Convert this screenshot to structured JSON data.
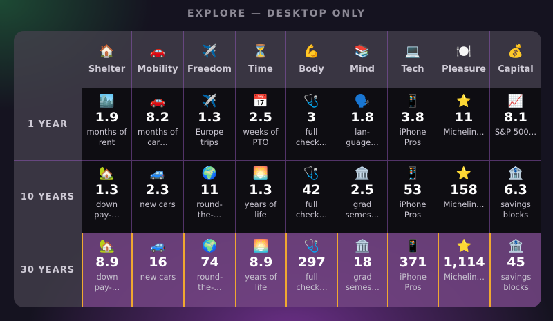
{
  "header": {
    "title": "EXPLORE — DESKTOP ONLY"
  },
  "table": {
    "columns": [
      {
        "icon": "🏠",
        "label": "Shelter"
      },
      {
        "icon": "🚗",
        "label": "Mobility"
      },
      {
        "icon": "✈️",
        "label": "Freedom"
      },
      {
        "icon": "⏳",
        "label": "Time"
      },
      {
        "icon": "💪",
        "label": "Body"
      },
      {
        "icon": "📚",
        "label": "Mind"
      },
      {
        "icon": "💻",
        "label": "Tech"
      },
      {
        "icon": "🍽️",
        "label": "Pleasure"
      },
      {
        "icon": "💰",
        "label": "Capital"
      }
    ],
    "rows": [
      {
        "label": "1 YEAR",
        "cells": [
          {
            "icon": "🏙️",
            "value": "1.9",
            "text": "months of rent"
          },
          {
            "icon": "🚗",
            "value": "8.2",
            "text": "months of car…"
          },
          {
            "icon": "✈️",
            "value": "1.3",
            "text": "Europe trips"
          },
          {
            "icon": "📅",
            "value": "2.5",
            "text": "weeks of PTO"
          },
          {
            "icon": "🩺",
            "value": "3",
            "text": "full check…"
          },
          {
            "icon": "🗣️",
            "value": "1.8",
            "text": "lan­guage…"
          },
          {
            "icon": "📱",
            "value": "3.8",
            "text": "iPhone Pros"
          },
          {
            "icon": "⭐",
            "value": "11",
            "text": "Michelin…"
          },
          {
            "icon": "📈",
            "value": "8.1",
            "text": "S&P 500…"
          }
        ]
      },
      {
        "label": "10 YEARS",
        "cells": [
          {
            "icon": "🏡",
            "value": "1.3",
            "text": "down pay-…"
          },
          {
            "icon": "🚙",
            "value": "2.3",
            "text": "new cars"
          },
          {
            "icon": "🌍",
            "value": "11",
            "text": "round-the-…"
          },
          {
            "icon": "🌅",
            "value": "1.3",
            "text": "years of life"
          },
          {
            "icon": "🩺",
            "value": "42",
            "text": "full check…"
          },
          {
            "icon": "🏛️",
            "value": "2.5",
            "text": "grad semes…"
          },
          {
            "icon": "📱",
            "value": "53",
            "text": "iPhone Pros"
          },
          {
            "icon": "⭐",
            "value": "158",
            "text": "Michelin…"
          },
          {
            "icon": "🏦",
            "value": "6.3",
            "text": "savings blocks"
          }
        ]
      },
      {
        "label": "30 YEARS",
        "cells": [
          {
            "icon": "🏡",
            "value": "8.9",
            "text": "down pay-…"
          },
          {
            "icon": "🚙",
            "value": "16",
            "text": "new cars"
          },
          {
            "icon": "🌍",
            "value": "74",
            "text": "round-the-…"
          },
          {
            "icon": "🌅",
            "value": "8.9",
            "text": "years of life"
          },
          {
            "icon": "🩺",
            "value": "297",
            "text": "full check…"
          },
          {
            "icon": "🏛️",
            "value": "18",
            "text": "grad semes…"
          },
          {
            "icon": "📱",
            "value": "371",
            "text": "iPhone Pros"
          },
          {
            "icon": "⭐",
            "value": "1,114",
            "text": "Michelin…"
          },
          {
            "icon": "🏦",
            "value": "45",
            "text": "savings blocks"
          }
        ]
      }
    ]
  }
}
